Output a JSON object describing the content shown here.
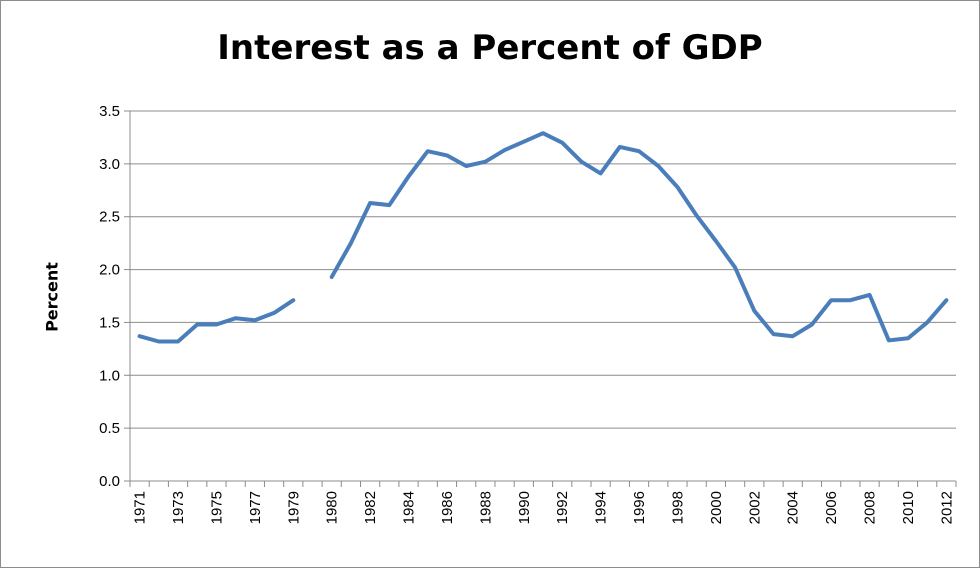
{
  "chart_data": {
    "type": "line",
    "title": "Interest as a Percent of GDP",
    "ylabel": "Percent",
    "xlabel": "",
    "ylim": [
      0,
      3.5
    ],
    "yticks": [
      "0.0",
      "0.5",
      "1.0",
      "1.5",
      "2.0",
      "2.5",
      "3.0",
      "3.5"
    ],
    "xtick_labels": [
      "1971",
      "1973",
      "1975",
      "1977",
      "1979",
      "1980",
      "1982",
      "1984",
      "1986",
      "1988",
      "1990",
      "1992",
      "1994",
      "1996",
      "1998",
      "2000",
      "2002",
      "2004",
      "2006",
      "2008",
      "2010",
      "2012"
    ],
    "grid": true,
    "legend": "none",
    "line_color": "#4a7ebb",
    "categories": [
      1971,
      1972,
      1973,
      1974,
      1975,
      1976,
      1977,
      1978,
      1979,
      "gap",
      1980,
      1981,
      1982,
      1983,
      1984,
      1985,
      1986,
      1987,
      1988,
      1989,
      1990,
      1991,
      1992,
      1993,
      1994,
      1995,
      1996,
      1997,
      1998,
      1999,
      2000,
      2001,
      2002,
      2003,
      2004,
      2005,
      2006,
      2007,
      2008,
      2009,
      2010,
      2011,
      2012
    ],
    "series": [
      {
        "values": [
          1.37,
          1.32,
          1.32,
          1.48,
          1.48,
          1.54,
          1.52,
          1.59,
          1.71,
          null,
          1.93,
          2.25,
          2.63,
          2.61,
          2.88,
          3.12,
          3.08,
          2.98,
          3.02,
          3.13,
          3.21,
          3.29,
          3.2,
          3.02,
          2.91,
          3.16,
          3.12,
          2.98,
          2.78,
          2.51,
          2.27,
          2.02,
          1.61,
          1.39,
          1.37,
          1.48,
          1.71,
          1.71,
          1.76,
          1.33,
          1.35,
          1.5,
          1.71
        ]
      }
    ]
  }
}
